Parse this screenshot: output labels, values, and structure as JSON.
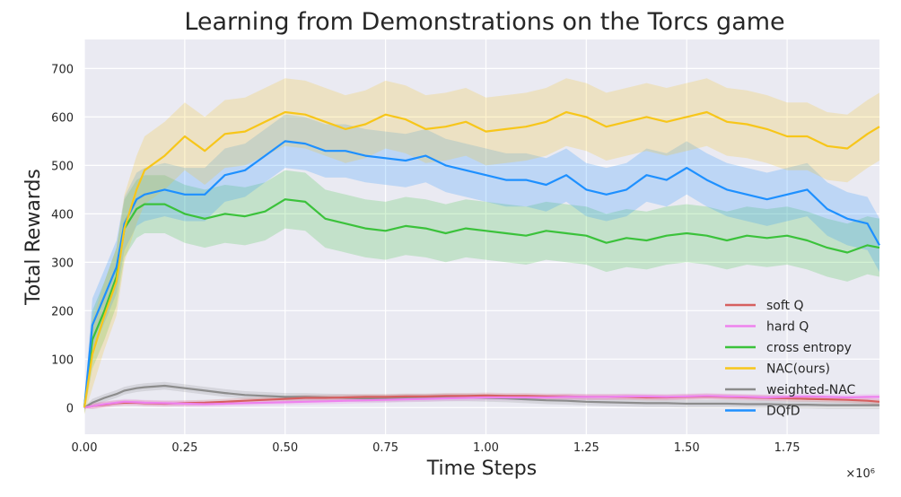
{
  "chart_data": {
    "type": "line",
    "title": "Learning from Demonstrations on the Torcs game",
    "xlabel": "Time Steps",
    "ylabel": "Total Rewards",
    "x_multiplier_label": "×10⁶",
    "xlim": [
      0,
      1.98
    ],
    "ylim": [
      -55,
      760
    ],
    "x_ticks": [
      0.0,
      0.25,
      0.5,
      0.75,
      1.0,
      1.25,
      1.5,
      1.75
    ],
    "x_tick_labels": [
      "0.00",
      "0.25",
      "0.50",
      "0.75",
      "1.00",
      "1.25",
      "1.50",
      "1.75"
    ],
    "y_ticks": [
      0,
      100,
      200,
      300,
      400,
      500,
      600,
      700
    ],
    "y_tick_labels": [
      "0",
      "100",
      "200",
      "300",
      "400",
      "500",
      "600",
      "700"
    ],
    "grid": true,
    "legend_position": "bottom-right",
    "colors": {
      "background": "#eaeaf2",
      "grid": "#ffffff"
    },
    "x": [
      0.0,
      0.02,
      0.05,
      0.08,
      0.1,
      0.13,
      0.15,
      0.2,
      0.25,
      0.3,
      0.35,
      0.4,
      0.45,
      0.5,
      0.55,
      0.6,
      0.65,
      0.7,
      0.75,
      0.8,
      0.85,
      0.9,
      0.95,
      1.0,
      1.05,
      1.1,
      1.15,
      1.2,
      1.25,
      1.3,
      1.35,
      1.4,
      1.45,
      1.5,
      1.55,
      1.6,
      1.65,
      1.7,
      1.75,
      1.8,
      1.85,
      1.9,
      1.95,
      1.98
    ],
    "series": [
      {
        "name": "soft Q",
        "color": "#d65f5f",
        "values": [
          0,
          3,
          6,
          9,
          10,
          10,
          9,
          8,
          9,
          10,
          12,
          14,
          16,
          18,
          20,
          20,
          21,
          22,
          22,
          23,
          23,
          24,
          24,
          25,
          24,
          24,
          23,
          23,
          22,
          22,
          22,
          21,
          21,
          22,
          23,
          22,
          21,
          20,
          19,
          18,
          17,
          16,
          14,
          12
        ],
        "band": 6
      },
      {
        "name": "hard Q",
        "color": "#ee82ee",
        "values": [
          0,
          3,
          7,
          10,
          12,
          11,
          10,
          9,
          8,
          7,
          8,
          9,
          10,
          11,
          12,
          13,
          14,
          15,
          16,
          17,
          18,
          19,
          20,
          21,
          21,
          21,
          21,
          22,
          22,
          22,
          23,
          23,
          22,
          23,
          24,
          23,
          22,
          21,
          22,
          23,
          22,
          21,
          22,
          22
        ],
        "band": 6
      },
      {
        "name": "cross entropy",
        "color": "#3bc23b",
        "values": [
          0,
          140,
          200,
          270,
          370,
          410,
          420,
          420,
          400,
          390,
          400,
          395,
          405,
          430,
          425,
          390,
          380,
          370,
          365,
          375,
          370,
          360,
          370,
          365,
          360,
          355,
          365,
          360,
          355,
          340,
          350,
          345,
          355,
          360,
          355,
          345,
          355,
          350,
          355,
          345,
          330,
          320,
          335,
          330
        ],
        "band": 60
      },
      {
        "name": "NAC(ours)",
        "color": "#f7c61a",
        "values": [
          0,
          110,
          190,
          260,
          370,
          450,
          490,
          520,
          560,
          530,
          565,
          570,
          590,
          610,
          605,
          590,
          575,
          585,
          605,
          595,
          575,
          580,
          590,
          570,
          575,
          580,
          590,
          610,
          600,
          580,
          590,
          600,
          590,
          600,
          610,
          590,
          585,
          575,
          560,
          560,
          540,
          535,
          565,
          580
        ],
        "band": 70
      },
      {
        "name": "weighted-NAC",
        "color": "#8c8c8c",
        "values": [
          0,
          10,
          20,
          28,
          35,
          40,
          42,
          45,
          40,
          35,
          30,
          26,
          24,
          22,
          22,
          21,
          20,
          19,
          19,
          20,
          20,
          21,
          21,
          20,
          19,
          17,
          15,
          14,
          12,
          11,
          10,
          9,
          9,
          8,
          8,
          8,
          7,
          7,
          6,
          6,
          5,
          5,
          5,
          5
        ],
        "band": 8
      },
      {
        "name": "DQfD",
        "color": "#1e90ff",
        "values": [
          0,
          170,
          230,
          290,
          380,
          430,
          440,
          450,
          440,
          440,
          480,
          490,
          520,
          550,
          545,
          530,
          530,
          520,
          515,
          510,
          520,
          500,
          490,
          480,
          470,
          470,
          460,
          480,
          450,
          440,
          450,
          480,
          470,
          495,
          470,
          450,
          440,
          430,
          440,
          450,
          410,
          390,
          380,
          335
        ],
        "band": 55
      }
    ]
  }
}
